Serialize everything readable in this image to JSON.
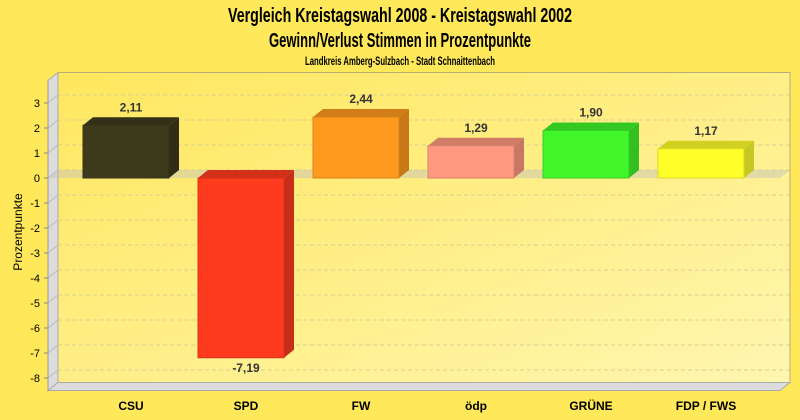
{
  "chart_data": {
    "type": "bar",
    "title": "Vergleich Kreistagswahl 2008 - Kreistagswahl 2002",
    "subtitle": "Gewinn/Verlust Stimmen in Prozentpunkte",
    "subtitle2": "Landkreis Amberg-Sulzbach - Stadt Schnaittenbach",
    "xlabel": "",
    "ylabel": "Prozentpunkte",
    "ylim": [
      -8.5,
      3.9
    ],
    "yticks": [
      3,
      2,
      1,
      0,
      -1,
      -2,
      -3,
      -4,
      -5,
      -6,
      -7,
      -8
    ],
    "grid": true,
    "categories": [
      "CSU",
      "SPD",
      "FW",
      "ödp",
      "GRÜNE",
      "FDP / FWS"
    ],
    "values": [
      2.11,
      -7.19,
      2.44,
      1.29,
      1.9,
      1.17
    ],
    "value_labels": [
      "2,11",
      "-7,19",
      "2,44",
      "1,29",
      "1,90",
      "1,17"
    ],
    "colors": [
      "#3d3a1c",
      "#ff3b1f",
      "#ff9a1e",
      "#ff9a80",
      "#40f52a",
      "#ffff2a"
    ]
  }
}
